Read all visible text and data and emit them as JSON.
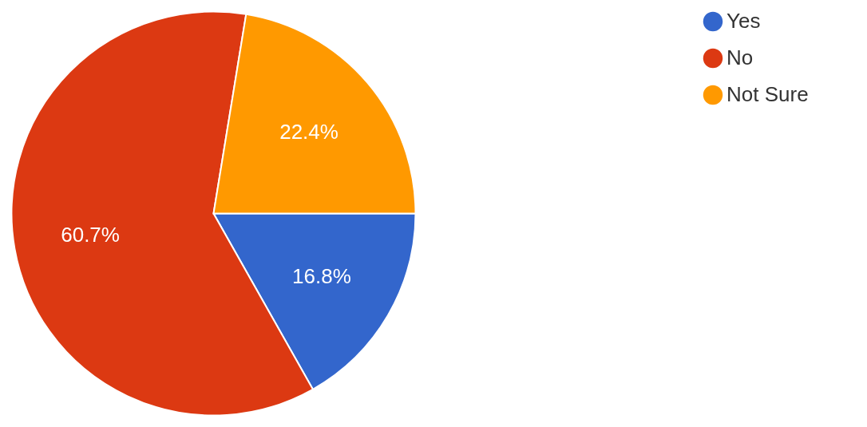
{
  "chart_data": {
    "type": "pie",
    "categories": [
      "Yes",
      "No",
      "Not Sure"
    ],
    "values": [
      16.8,
      60.7,
      22.4
    ],
    "value_labels": [
      "16.8%",
      "60.7%",
      "22.4%"
    ],
    "colors": [
      "#3366cc",
      "#dc3912",
      "#ff9900"
    ],
    "legend": "top right"
  }
}
